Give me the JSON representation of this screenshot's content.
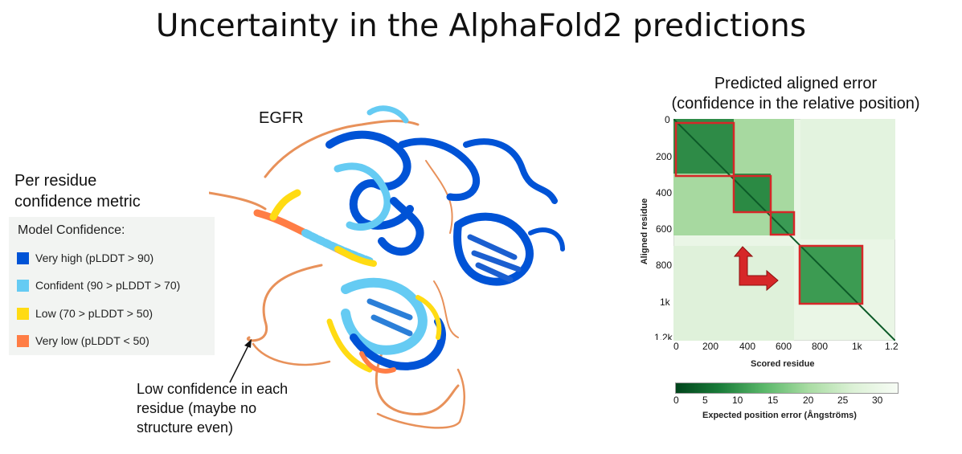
{
  "slide": {
    "title": "Uncertainty in the AlphaFold2 predictions",
    "protein_label": "EGFR",
    "per_residue_heading": [
      "Per residue",
      "confidence metric"
    ],
    "low_conf_note": [
      "Low confidence in each",
      "residue (maybe no",
      "structure even)"
    ]
  },
  "legend": {
    "title": "Model Confidence:",
    "items": [
      {
        "label": "Very high (pLDDT > 90)",
        "color": "#0053d6"
      },
      {
        "label": "Confident (90 > pLDDT > 70)",
        "color": "#65cbf3"
      },
      {
        "label": "Low (70 > pLDDT > 50)",
        "color": "#ffdb13"
      },
      {
        "label": "Very low (pLDDT < 50)",
        "color": "#ff7d45"
      }
    ]
  },
  "pae": {
    "title": [
      "Predicted aligned error",
      "(confidence in the relative position)"
    ],
    "x_label": "Scored residue",
    "y_label": "Aligned residue",
    "x_ticks": [
      "0",
      "200",
      "400",
      "600",
      "800",
      "1k",
      "1.2"
    ],
    "y_ticks": [
      "0",
      "200",
      "400",
      "600",
      "800",
      "1k",
      "1.2k"
    ],
    "colorbar_label": "Expected position error (Ångströms)",
    "colorbar_ticks": [
      "0",
      "5",
      "10",
      "15",
      "20",
      "25",
      "30"
    ],
    "colors": {
      "low_error": "#00441b",
      "high_error": "#f7fcf5",
      "domain_box": "#d62728"
    }
  }
}
